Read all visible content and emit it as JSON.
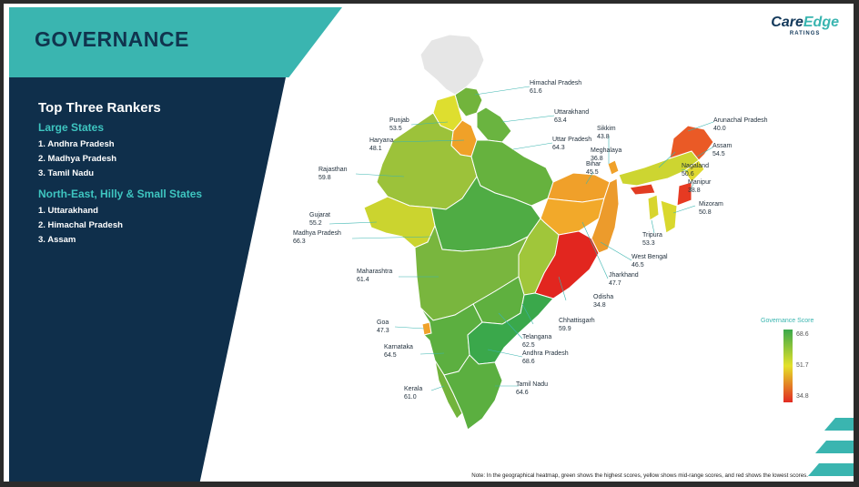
{
  "title": "GOVERNANCE",
  "logo": {
    "main_a": "Care",
    "main_b": "Edge",
    "sub": "RATINGS"
  },
  "left_panel": {
    "heading": "Top Three Rankers",
    "large_states_heading": "Large States",
    "large_states": [
      "1. Andhra Pradesh",
      "2. Madhya Pradesh",
      "3. Tamil Nadu"
    ],
    "ne_heading": "North-East, Hilly & Small States",
    "ne_states": [
      "1. Uttarakhand",
      "2. Himachal Pradesh",
      "3. Assam"
    ]
  },
  "states": [
    {
      "name": "Himachal Pradesh",
      "value": "61.6"
    },
    {
      "name": "Punjab",
      "value": "53.5"
    },
    {
      "name": "Uttarakhand",
      "value": "63.4"
    },
    {
      "name": "Haryana",
      "value": "48.1"
    },
    {
      "name": "Uttar Pradesh",
      "value": "64.3"
    },
    {
      "name": "Sikkim",
      "value": "43.8"
    },
    {
      "name": "Arunachal Pradesh",
      "value": "40.0"
    },
    {
      "name": "Assam",
      "value": "54.5"
    },
    {
      "name": "Meghalaya",
      "value": "36.8"
    },
    {
      "name": "Bihar",
      "value": "45.5"
    },
    {
      "name": "Nagaland",
      "value": "50.6"
    },
    {
      "name": "Rajasthan",
      "value": "59.8"
    },
    {
      "name": "Manipur",
      "value": "38.8"
    },
    {
      "name": "Mizoram",
      "value": "50.8"
    },
    {
      "name": "Gujarat",
      "value": "55.2"
    },
    {
      "name": "Tripura",
      "value": "53.3"
    },
    {
      "name": "Madhya Pradesh",
      "value": "66.3"
    },
    {
      "name": "West Bengal",
      "value": "46.5"
    },
    {
      "name": "Jharkhand",
      "value": "47.7"
    },
    {
      "name": "Maharashtra",
      "value": "61.4"
    },
    {
      "name": "Odisha",
      "value": "34.8"
    },
    {
      "name": "Chhattisgarh",
      "value": "59.9"
    },
    {
      "name": "Goa",
      "value": "47.3"
    },
    {
      "name": "Telangana",
      "value": "62.5"
    },
    {
      "name": "Karnataka",
      "value": "64.5"
    },
    {
      "name": "Andhra Pradesh",
      "value": "68.6"
    },
    {
      "name": "Kerala",
      "value": "61.0"
    },
    {
      "name": "Tamil Nadu",
      "value": "64.6"
    }
  ],
  "legend": {
    "title": "Governance Score",
    "max": "68.6",
    "mid": "51.7",
    "min": "34.8"
  },
  "colors": {
    "high": "#3aa84b",
    "mid": "#e4e12a",
    "low": "#e22b23",
    "teal": "#3ab5b0",
    "navy": "#0f2f4b"
  },
  "note": "Note: In the geographical heatmap, green shows the highest scores, yellow shows mid-range scores, and red shows the lowest scores."
}
